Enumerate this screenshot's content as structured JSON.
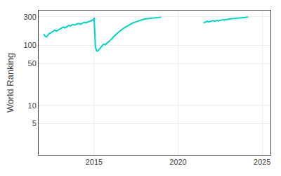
{
  "chart_data": {
    "type": "line",
    "y_label": "World Ranking",
    "log": "y",
    "grid": true,
    "xlim": [
      2011.7,
      2025.5
    ],
    "xticks": [
      2015,
      2020,
      2025
    ],
    "ylim": [
      1.5,
      380
    ],
    "yticks": [
      5,
      10,
      50,
      100,
      300
    ],
    "series": [
      {
        "color": "#00d4c8",
        "x": [
          2012.0,
          2012.08,
          2012.17,
          2012.25,
          2012.33,
          2012.42,
          2012.5,
          2012.58,
          2012.67,
          2012.75,
          2012.83,
          2012.92,
          2013.0,
          2013.08,
          2013.17,
          2013.25,
          2013.33,
          2013.42,
          2013.5,
          2013.58,
          2013.67,
          2013.75,
          2013.83,
          2013.92,
          2014.0,
          2014.08,
          2014.17,
          2014.25,
          2014.33,
          2014.42,
          2014.5,
          2014.58,
          2014.67,
          2014.75,
          2014.83,
          2014.92,
          2015.0
        ],
        "values": [
          155,
          143,
          138,
          148,
          158,
          162,
          168,
          175,
          180,
          172,
          178,
          185,
          190,
          198,
          202,
          195,
          200,
          208,
          215,
          210,
          218,
          222,
          218,
          225,
          228,
          232,
          226,
          230,
          238,
          242,
          237,
          244,
          248,
          252,
          258,
          265,
          272
        ]
      },
      {
        "color": "#00d4c8",
        "x": [
          2015.0,
          2015.02,
          2015.04,
          2015.06,
          2015.08,
          2015.12,
          2015.17,
          2015.25,
          2015.33,
          2015.42,
          2015.5,
          2015.58,
          2015.67,
          2015.75,
          2015.83,
          2015.92,
          2016.0,
          2016.08,
          2016.17,
          2016.25,
          2016.33,
          2016.42,
          2016.5,
          2016.58,
          2016.67,
          2016.75,
          2016.83,
          2016.92,
          2017.0,
          2017.17,
          2017.33,
          2017.5,
          2017.67,
          2017.83,
          2018.0,
          2018.17,
          2018.33,
          2018.5,
          2018.67,
          2018.83,
          2019.0
        ],
        "values": [
          290,
          210,
          140,
          110,
          95,
          85,
          80,
          82,
          88,
          95,
          100,
          105,
          102,
          108,
          112,
          118,
          125,
          130,
          140,
          148,
          155,
          162,
          170,
          178,
          185,
          192,
          198,
          205,
          215,
          225,
          238,
          248,
          258,
          268,
          275,
          278,
          282,
          286,
          289,
          292,
          295
        ]
      },
      {
        "color": "#00d4c8",
        "x": [
          2021.5,
          2021.58,
          2021.67,
          2021.75,
          2021.83,
          2021.92,
          2022.0,
          2022.08,
          2022.17,
          2022.25,
          2022.33,
          2022.42,
          2022.5,
          2022.58,
          2022.67,
          2022.75,
          2022.83,
          2022.92,
          2023.0,
          2023.17,
          2023.33,
          2023.5,
          2023.67,
          2023.83,
          2024.0,
          2024.17
        ],
        "values": [
          238,
          242,
          248,
          252,
          245,
          250,
          255,
          258,
          252,
          258,
          260,
          255,
          262,
          265,
          268,
          263,
          268,
          272,
          275,
          278,
          280,
          282,
          284,
          288,
          292,
          297
        ]
      }
    ]
  }
}
